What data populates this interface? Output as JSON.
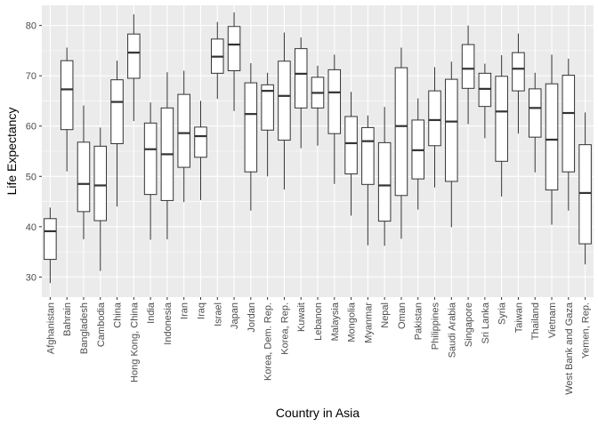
{
  "chart_data": {
    "type": "boxplot",
    "title": "",
    "xlabel": "Country in Asia",
    "ylabel": "Life Expectancy",
    "ylim": [
      26,
      84
    ],
    "yticks": [
      30,
      40,
      50,
      60,
      70,
      80
    ],
    "grid": true,
    "legend": "none",
    "colors": {
      "panel": "#EBEBEB",
      "grid": "#FFFFFF",
      "box_fill": "#FFFFFF",
      "box_stroke": "#333333",
      "median": "#333333",
      "whisker": "#333333"
    },
    "categories": [
      "Afghanistan",
      "Bahrain",
      "Bangladesh",
      "Cambodia",
      "China",
      "Hong Kong, China",
      "India",
      "Indonesia",
      "Iran",
      "Iraq",
      "Israel",
      "Japan",
      "Jordan",
      "Korea, Dem. Rep.",
      "Korea, Rep.",
      "Kuwait",
      "Lebanon",
      "Malaysia",
      "Mongolia",
      "Myanmar",
      "Nepal",
      "Oman",
      "Pakistan",
      "Philippines",
      "Saudi Arabia",
      "Singapore",
      "Sri Lanka",
      "Syria",
      "Taiwan",
      "Thailand",
      "Vietnam",
      "West Bank and Gaza",
      "Yemen, Rep."
    ],
    "boxes": [
      {
        "min": 28.8,
        "q1": 33.5,
        "median": 39.1,
        "q3": 41.6,
        "max": 43.8
      },
      {
        "min": 51.0,
        "q1": 59.3,
        "median": 67.3,
        "q3": 73.0,
        "max": 75.6
      },
      {
        "min": 37.5,
        "q1": 43.0,
        "median": 48.5,
        "q3": 56.8,
        "max": 64.1
      },
      {
        "min": 31.2,
        "q1": 41.2,
        "median": 48.2,
        "q3": 56.0,
        "max": 59.7
      },
      {
        "min": 44.0,
        "q1": 56.5,
        "median": 64.8,
        "q3": 69.2,
        "max": 73.0
      },
      {
        "min": 61.0,
        "q1": 69.5,
        "median": 74.6,
        "q3": 78.3,
        "max": 82.2
      },
      {
        "min": 37.4,
        "q1": 46.4,
        "median": 55.4,
        "q3": 60.6,
        "max": 64.7
      },
      {
        "min": 37.5,
        "q1": 45.2,
        "median": 54.4,
        "q3": 63.6,
        "max": 70.7
      },
      {
        "min": 44.9,
        "q1": 51.8,
        "median": 58.6,
        "q3": 66.3,
        "max": 71.0
      },
      {
        "min": 45.3,
        "q1": 53.8,
        "median": 58.0,
        "q3": 59.8,
        "max": 65.0
      },
      {
        "min": 65.4,
        "q1": 70.5,
        "median": 73.8,
        "q3": 77.3,
        "max": 80.7
      },
      {
        "min": 63.0,
        "q1": 71.0,
        "median": 76.2,
        "q3": 79.8,
        "max": 82.6
      },
      {
        "min": 43.2,
        "q1": 50.9,
        "median": 62.4,
        "q3": 68.6,
        "max": 72.5
      },
      {
        "min": 50.0,
        "q1": 59.2,
        "median": 67.0,
        "q3": 68.2,
        "max": 70.6
      },
      {
        "min": 47.4,
        "q1": 57.2,
        "median": 66.0,
        "q3": 72.9,
        "max": 78.6
      },
      {
        "min": 55.6,
        "q1": 63.6,
        "median": 70.4,
        "q3": 75.4,
        "max": 77.6
      },
      {
        "min": 56.1,
        "q1": 63.6,
        "median": 66.6,
        "q3": 69.7,
        "max": 72.0
      },
      {
        "min": 48.5,
        "q1": 58.5,
        "median": 66.7,
        "q3": 71.2,
        "max": 74.2
      },
      {
        "min": 42.2,
        "q1": 50.5,
        "median": 56.6,
        "q3": 61.9,
        "max": 66.8
      },
      {
        "min": 36.3,
        "q1": 48.4,
        "median": 57.0,
        "q3": 59.7,
        "max": 62.1
      },
      {
        "min": 36.2,
        "q1": 41.1,
        "median": 48.2,
        "q3": 56.7,
        "max": 63.8
      },
      {
        "min": 37.6,
        "q1": 46.2,
        "median": 60.0,
        "q3": 71.6,
        "max": 75.6
      },
      {
        "min": 43.4,
        "q1": 49.5,
        "median": 55.2,
        "q3": 61.2,
        "max": 65.5
      },
      {
        "min": 47.8,
        "q1": 56.1,
        "median": 61.2,
        "q3": 67.0,
        "max": 71.7
      },
      {
        "min": 39.9,
        "q1": 49.0,
        "median": 60.9,
        "q3": 69.3,
        "max": 72.8
      },
      {
        "min": 60.4,
        "q1": 67.5,
        "median": 71.4,
        "q3": 76.2,
        "max": 80.0
      },
      {
        "min": 57.6,
        "q1": 63.9,
        "median": 67.4,
        "q3": 70.5,
        "max": 72.4
      },
      {
        "min": 46.0,
        "q1": 53.0,
        "median": 62.9,
        "q3": 69.9,
        "max": 74.1
      },
      {
        "min": 58.5,
        "q1": 67.0,
        "median": 71.4,
        "q3": 74.6,
        "max": 78.4
      },
      {
        "min": 50.8,
        "q1": 57.8,
        "median": 63.6,
        "q3": 67.4,
        "max": 70.6
      },
      {
        "min": 40.4,
        "q1": 47.3,
        "median": 57.3,
        "q3": 68.4,
        "max": 74.2
      },
      {
        "min": 43.2,
        "q1": 50.9,
        "median": 62.6,
        "q3": 70.1,
        "max": 73.4
      },
      {
        "min": 32.5,
        "q1": 36.6,
        "median": 46.7,
        "q3": 56.3,
        "max": 62.7
      }
    ]
  }
}
